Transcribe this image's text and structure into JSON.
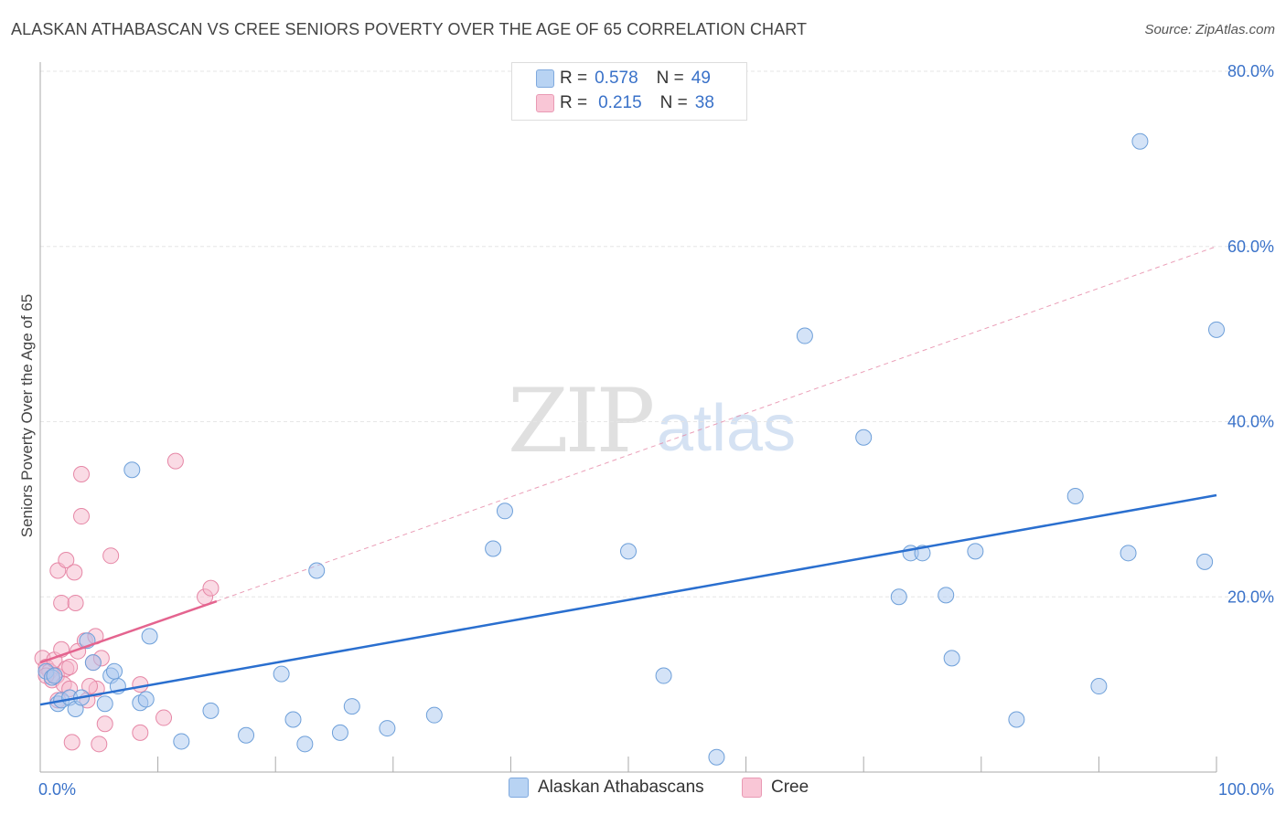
{
  "title": "ALASKAN ATHABASCAN VS CREE SENIORS POVERTY OVER THE AGE OF 65 CORRELATION CHART",
  "source": "Source: ZipAtlas.com",
  "watermark": {
    "zip": "ZIP",
    "atlas": "atlas"
  },
  "legend_top": {
    "rows": [
      {
        "r_label": "R =",
        "r_value": "0.578",
        "n_label": "N =",
        "n_value": "49"
      },
      {
        "r_label": "R =",
        "r_value": "0.215",
        "n_label": "N =",
        "n_value": "38"
      }
    ]
  },
  "chart_data": {
    "type": "scatter",
    "title": "ALASKAN ATHABASCAN VS CREE SENIORS POVERTY OVER THE AGE OF 65 CORRELATION CHART",
    "xlabel": "",
    "ylabel": "Seniors Poverty Over the Age of 65",
    "xlim": [
      0,
      100
    ],
    "ylim": [
      0,
      80
    ],
    "x_tick_labels": [
      "0.0%",
      "100.0%"
    ],
    "y_tick_labels": [
      "20.0%",
      "40.0%",
      "60.0%",
      "80.0%"
    ],
    "y_ticks": [
      20,
      40,
      60,
      80
    ],
    "colors": {
      "blue_fill": "#a9c8f0",
      "blue_stroke": "#6d9fd9",
      "blue_line": "#2a6fcf",
      "pink_fill": "#f5b8cb",
      "pink_stroke": "#e687a6",
      "pink_line": "#e4648f",
      "grid": "#e6e6e6",
      "tick_label": "#3a72c9"
    },
    "series": [
      {
        "name": "Alaskan Athabascans",
        "r": 0.578,
        "n": 49,
        "trend": {
          "x": [
            0,
            100
          ],
          "y": [
            7.7,
            31.6
          ],
          "style": "solid"
        },
        "points": [
          [
            0.5,
            11.5
          ],
          [
            1.0,
            10.8
          ],
          [
            1.5,
            7.8
          ],
          [
            1.8,
            8.2
          ],
          [
            2.5,
            8.5
          ],
          [
            3.0,
            7.2
          ],
          [
            3.5,
            8.5
          ],
          [
            4.0,
            15.0
          ],
          [
            4.5,
            12.5
          ],
          [
            5.5,
            7.8
          ],
          [
            6.0,
            11.0
          ],
          [
            6.3,
            11.5
          ],
          [
            6.6,
            9.8
          ],
          [
            7.8,
            34.5
          ],
          [
            8.5,
            7.9
          ],
          [
            9.0,
            8.3
          ],
          [
            9.3,
            15.5
          ],
          [
            12.0,
            3.5
          ],
          [
            14.5,
            7.0
          ],
          [
            17.5,
            4.2
          ],
          [
            20.5,
            11.2
          ],
          [
            21.5,
            6.0
          ],
          [
            22.5,
            3.2
          ],
          [
            23.5,
            23.0
          ],
          [
            25.5,
            4.5
          ],
          [
            26.5,
            7.5
          ],
          [
            29.5,
            5.0
          ],
          [
            33.5,
            6.5
          ],
          [
            38.5,
            25.5
          ],
          [
            39.5,
            29.8
          ],
          [
            50.0,
            25.2
          ],
          [
            53.0,
            11.0
          ],
          [
            57.5,
            1.7
          ],
          [
            65.0,
            49.8
          ],
          [
            70.0,
            38.2
          ],
          [
            73.0,
            20.0
          ],
          [
            74.0,
            25.0
          ],
          [
            75.0,
            25.0
          ],
          [
            77.0,
            20.2
          ],
          [
            77.5,
            13.0
          ],
          [
            79.5,
            25.2
          ],
          [
            83.0,
            6.0
          ],
          [
            88.0,
            31.5
          ],
          [
            90.0,
            9.8
          ],
          [
            92.5,
            25.0
          ],
          [
            93.5,
            72.0
          ],
          [
            99.0,
            24.0
          ],
          [
            100.0,
            50.5
          ],
          [
            1.2,
            11.0
          ]
        ]
      },
      {
        "name": "Cree",
        "r": 0.215,
        "n": 38,
        "trend": {
          "x": [
            0,
            15
          ],
          "y": [
            12.5,
            19.5
          ],
          "style": "solid",
          "extend_to": {
            "x": 100,
            "y": 60
          }
        },
        "points": [
          [
            0.2,
            13.0
          ],
          [
            0.5,
            12.0
          ],
          [
            0.8,
            11.5
          ],
          [
            1.0,
            10.5
          ],
          [
            1.2,
            12.8
          ],
          [
            1.4,
            11.0
          ],
          [
            1.5,
            8.2
          ],
          [
            1.8,
            14.0
          ],
          [
            2.0,
            10.0
          ],
          [
            2.2,
            11.8
          ],
          [
            2.5,
            12.0
          ],
          [
            1.5,
            23.0
          ],
          [
            1.8,
            19.3
          ],
          [
            2.2,
            24.2
          ],
          [
            2.5,
            9.5
          ],
          [
            2.7,
            3.4
          ],
          [
            2.9,
            22.8
          ],
          [
            3.0,
            19.3
          ],
          [
            3.2,
            13.8
          ],
          [
            3.5,
            29.2
          ],
          [
            3.5,
            34.0
          ],
          [
            3.8,
            15.0
          ],
          [
            4.0,
            8.2
          ],
          [
            4.5,
            12.5
          ],
          [
            4.7,
            15.5
          ],
          [
            4.8,
            9.5
          ],
          [
            5.0,
            3.2
          ],
          [
            5.2,
            13.0
          ],
          [
            5.5,
            5.5
          ],
          [
            6.0,
            24.7
          ],
          [
            8.5,
            10.0
          ],
          [
            8.5,
            4.5
          ],
          [
            10.5,
            6.2
          ],
          [
            11.5,
            35.5
          ],
          [
            14.0,
            20.0
          ],
          [
            14.5,
            21.0
          ],
          [
            0.5,
            11.0
          ],
          [
            4.2,
            9.8
          ]
        ]
      }
    ]
  },
  "bottom_legend": {
    "items": [
      {
        "label": "Alaskan Athabascans"
      },
      {
        "label": "Cree"
      }
    ]
  }
}
